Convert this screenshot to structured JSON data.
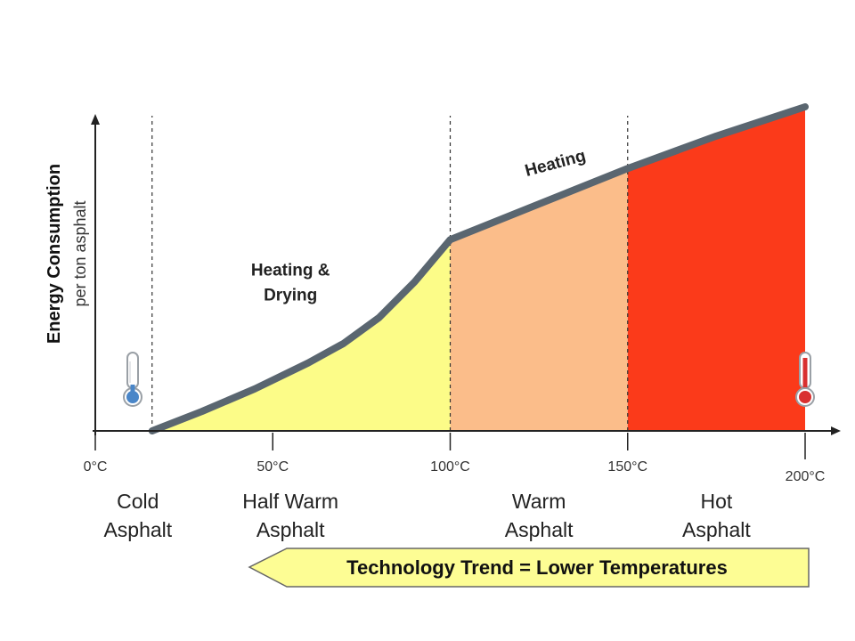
{
  "chart_data": {
    "type": "area",
    "ylabel": "Energy Consumption",
    "ylabel_sub": "per ton asphalt",
    "x_ticks": [
      {
        "value": 0,
        "label": "0°C"
      },
      {
        "value": 50,
        "label": "50°C"
      },
      {
        "value": 100,
        "label": "100°C"
      },
      {
        "value": 150,
        "label": "150°C"
      },
      {
        "value": 200,
        "label": "200°C"
      }
    ],
    "xlim": [
      0,
      205
    ],
    "ylim": [
      0,
      100
    ],
    "curve": {
      "x": [
        16,
        30,
        45,
        60,
        70,
        80,
        90,
        100,
        125,
        150,
        175,
        200
      ],
      "y": [
        0,
        6,
        13,
        21,
        27,
        35,
        46,
        59,
        70,
        81,
        91,
        100
      ]
    },
    "regions": [
      {
        "name": "Cold Asphalt",
        "line1": "Cold",
        "line2": "Asphalt",
        "from": 0,
        "to": 16,
        "label_x": 12,
        "color": "#ffffff"
      },
      {
        "name": "Half Warm Asphalt",
        "line1": "Half Warm",
        "line2": "Asphalt",
        "from": 16,
        "to": 100,
        "label_x": 55,
        "color": "#fcfc88"
      },
      {
        "name": "Warm Asphalt",
        "line1": "Warm",
        "line2": "Asphalt",
        "from": 100,
        "to": 150,
        "label_x": 125,
        "color": "#fbbd8a"
      },
      {
        "name": "Hot Asphalt",
        "line1": "Hot",
        "line2": "Asphalt",
        "from": 150,
        "to": 200,
        "label_x": 175,
        "color": "#fb3a1a"
      }
    ],
    "dividers": [
      16,
      100,
      150
    ],
    "annotations": [
      {
        "id": "heating-drying",
        "line1": "Heating &",
        "line2": "Drying",
        "x": 55,
        "y": 48
      },
      {
        "id": "heating",
        "text": "Heating",
        "x": 130,
        "y": 81,
        "rotate": -15
      }
    ],
    "trend_text": "Technology Trend = Lower Temperatures",
    "colors": {
      "curve": "#5a6670",
      "axis": "#222222",
      "trend_fill": "#fdfd94",
      "trend_stroke": "#666666",
      "thermo_cold": "#4a86c8",
      "thermo_hot": "#d93030"
    },
    "icons": {
      "cold": "thermometer-cold-icon",
      "hot": "thermometer-hot-icon"
    }
  }
}
